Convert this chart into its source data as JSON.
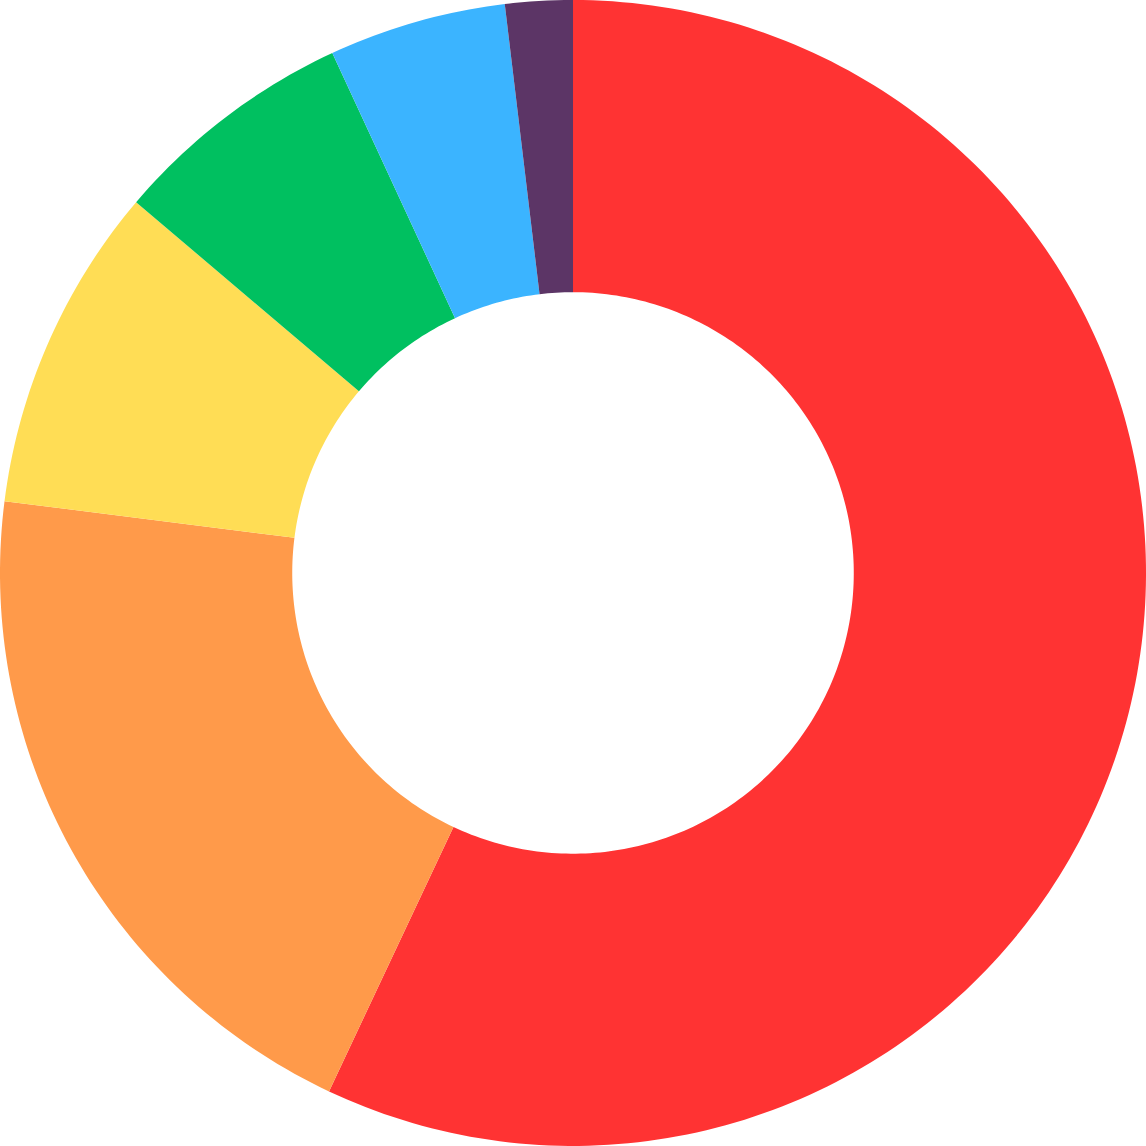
{
  "chart_data": {
    "type": "donut",
    "categories": [
      null,
      null,
      null,
      null,
      null,
      null
    ],
    "values": [
      57,
      20,
      9.2,
      6.9,
      5,
      1.9
    ],
    "colors": [
      "#ff3333",
      "#ff9a4a",
      "#ffdd55",
      "#00c060",
      "#3bb4ff",
      "#5c3566"
    ]
  }
}
